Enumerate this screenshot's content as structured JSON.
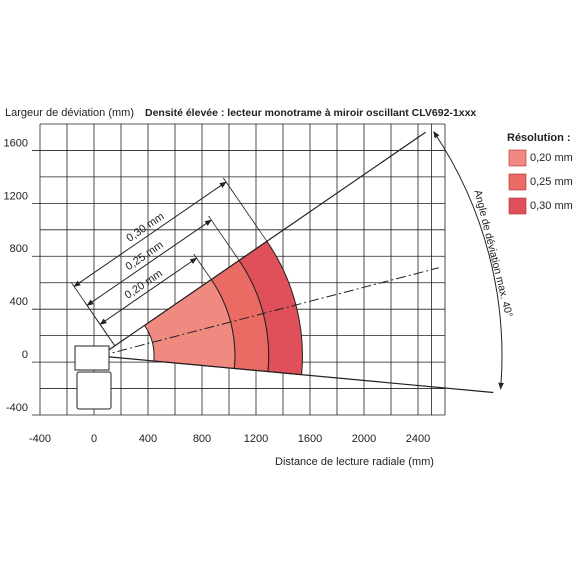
{
  "chart_data": {
    "type": "sector",
    "title": "Densité élevée : lecteur monotrame à miroir oscillant CLV692-1xxx",
    "y_label": "Largeur de déviation (mm)",
    "x_label": "Distance de lecture radiale (mm)",
    "legend_title": "Résolution :",
    "angle_label": "Angle de déviation max. 40°",
    "series": [
      {
        "name": "0,20 mm",
        "color": "#f08a80",
        "values": [
          400,
          1000
        ]
      },
      {
        "name": "0,25 mm",
        "color": "#ea6a64",
        "values": [
          1000,
          1250
        ]
      },
      {
        "name": "0,30 mm",
        "color": "#e0505a",
        "values": [
          1250,
          1500
        ]
      }
    ],
    "xlim": [
      -400,
      2600
    ],
    "xticks": [
      -400,
      0,
      400,
      800,
      1200,
      1600,
      2000,
      2400
    ],
    "ylim": [
      -400,
      1800
    ],
    "yticks": [
      -400,
      0,
      400,
      800,
      1200,
      1600
    ],
    "grid": true
  }
}
